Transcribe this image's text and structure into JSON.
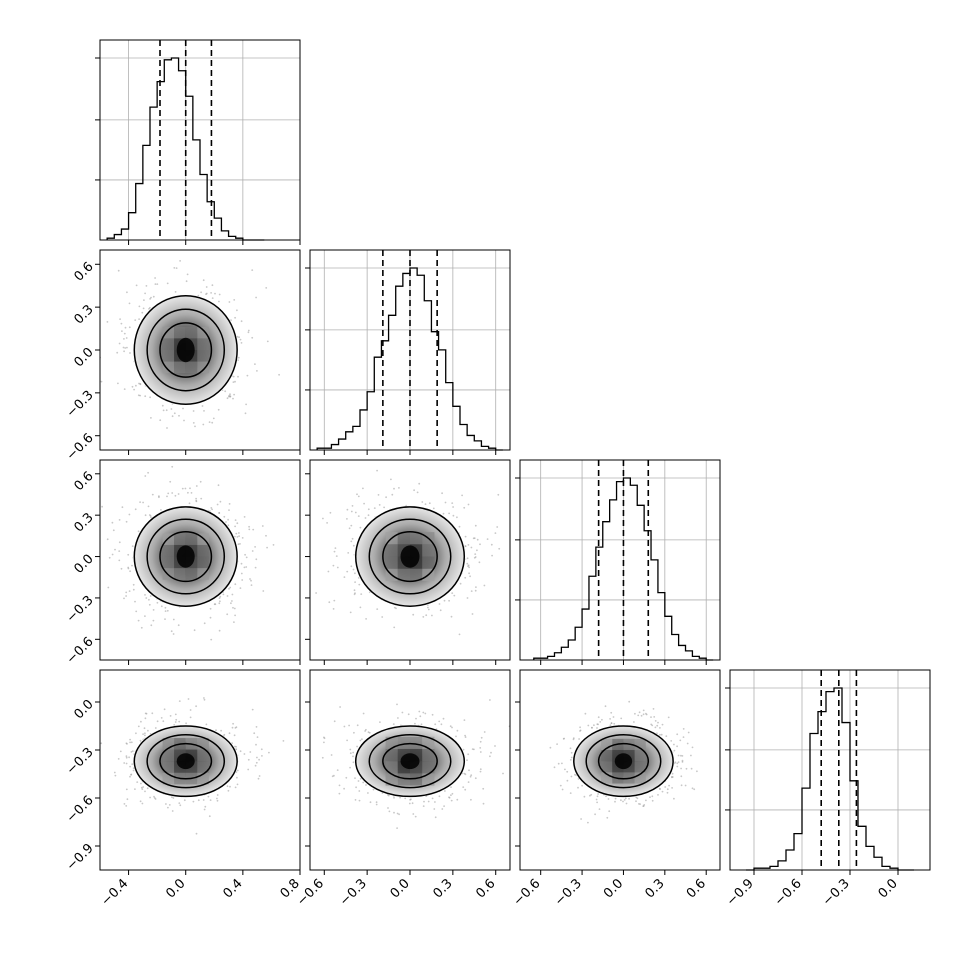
{
  "chart_data": {
    "type": "corner",
    "n_params": 4,
    "grid": true,
    "quantile_style": "dashed",
    "colors": {
      "line": "#000000",
      "grid": "#b0b0b0",
      "scatter": "#9a9a9a",
      "density_dark": "#000000",
      "density_light": "#ffffff"
    },
    "parameters": [
      {
        "range": [
          -0.6,
          0.8
        ],
        "ticks": [
          -0.4,
          0.0,
          0.4,
          0.8
        ],
        "tick_labels": [
          "−0.4",
          "0.0",
          "0.4",
          "0.8"
        ],
        "quantiles": [
          -0.18,
          0.0,
          0.18
        ],
        "mean": 0.0,
        "sigma": 0.18
      },
      {
        "range": [
          -0.7,
          0.7
        ],
        "ticks": [
          -0.6,
          -0.3,
          0.0,
          0.3,
          0.6
        ],
        "tick_labels": [
          "−0.6",
          "−0.3",
          "0.0",
          "0.3",
          "0.6"
        ],
        "quantiles": [
          -0.19,
          0.0,
          0.19
        ],
        "mean": 0.0,
        "sigma": 0.19
      },
      {
        "range": [
          -0.75,
          0.7
        ],
        "ticks": [
          -0.6,
          -0.3,
          0.0,
          0.3,
          0.6
        ],
        "tick_labels": [
          "−0.6",
          "−0.3",
          "0.0",
          "0.3",
          "0.6"
        ],
        "quantiles": [
          -0.18,
          0.0,
          0.18
        ],
        "mean": 0.0,
        "sigma": 0.18
      },
      {
        "range": [
          -1.05,
          0.2
        ],
        "ticks": [
          -0.9,
          -0.6,
          -0.3,
          0.0
        ],
        "tick_labels": [
          "−0.9",
          "−0.6",
          "−0.3",
          "0.0"
        ],
        "quantiles": [
          -0.48,
          -0.37,
          -0.26
        ],
        "mean": -0.37,
        "sigma": 0.11
      }
    ],
    "histograms": [
      {
        "param": 0,
        "bin_edges": [
          -0.55,
          -0.5,
          -0.45,
          -0.4,
          -0.35,
          -0.3,
          -0.25,
          -0.2,
          -0.15,
          -0.1,
          -0.05,
          0.0,
          0.05,
          0.1,
          0.15,
          0.2,
          0.25,
          0.3,
          0.35,
          0.4,
          0.45,
          0.5,
          0.55
        ],
        "counts": [
          0.01,
          0.03,
          0.06,
          0.15,
          0.31,
          0.52,
          0.73,
          0.87,
          0.99,
          1.0,
          0.93,
          0.79,
          0.55,
          0.36,
          0.21,
          0.12,
          0.05,
          0.02,
          0.01,
          0.0,
          0.0,
          0.0
        ]
      },
      {
        "param": 1,
        "bin_edges": [
          -0.65,
          -0.6,
          -0.55,
          -0.5,
          -0.45,
          -0.4,
          -0.35,
          -0.3,
          -0.25,
          -0.2,
          -0.15,
          -0.1,
          -0.05,
          0.0,
          0.05,
          0.1,
          0.15,
          0.2,
          0.25,
          0.3,
          0.35,
          0.4,
          0.45,
          0.5,
          0.55,
          0.6,
          0.65
        ],
        "counts": [
          0.01,
          0.01,
          0.03,
          0.06,
          0.1,
          0.13,
          0.22,
          0.32,
          0.51,
          0.6,
          0.74,
          0.9,
          0.97,
          1.0,
          0.96,
          0.82,
          0.65,
          0.55,
          0.37,
          0.24,
          0.14,
          0.08,
          0.05,
          0.02,
          0.01,
          0.0
        ]
      },
      {
        "param": 2,
        "bin_edges": [
          -0.65,
          -0.6,
          -0.55,
          -0.5,
          -0.45,
          -0.4,
          -0.35,
          -0.3,
          -0.25,
          -0.2,
          -0.15,
          -0.1,
          -0.05,
          0.0,
          0.05,
          0.1,
          0.15,
          0.2,
          0.25,
          0.3,
          0.35,
          0.4,
          0.45,
          0.5,
          0.55,
          0.6,
          0.65
        ],
        "counts": [
          0.01,
          0.01,
          0.02,
          0.04,
          0.07,
          0.11,
          0.18,
          0.28,
          0.46,
          0.62,
          0.76,
          0.88,
          0.98,
          1.0,
          0.96,
          0.85,
          0.71,
          0.55,
          0.37,
          0.24,
          0.14,
          0.08,
          0.05,
          0.02,
          0.01,
          0.0
        ]
      },
      {
        "param": 3,
        "bin_edges": [
          -0.95,
          -0.9,
          -0.85,
          -0.8,
          -0.75,
          -0.7,
          -0.65,
          -0.6,
          -0.55,
          -0.5,
          -0.45,
          -0.4,
          -0.35,
          -0.3,
          -0.25,
          -0.2,
          -0.15,
          -0.1,
          -0.05,
          0.0,
          0.05,
          0.1
        ],
        "counts": [
          0.0,
          0.01,
          0.01,
          0.02,
          0.05,
          0.11,
          0.2,
          0.45,
          0.75,
          0.87,
          0.98,
          1.0,
          0.81,
          0.49,
          0.24,
          0.13,
          0.07,
          0.02,
          0.01,
          0.0,
          0.0
        ]
      }
    ],
    "pairs": [
      {
        "x_param": 0,
        "y_param": 1
      },
      {
        "x_param": 0,
        "y_param": 2
      },
      {
        "x_param": 1,
        "y_param": 2
      },
      {
        "x_param": 0,
        "y_param": 3
      },
      {
        "x_param": 1,
        "y_param": 3
      },
      {
        "x_param": 2,
        "y_param": 3
      }
    ]
  }
}
